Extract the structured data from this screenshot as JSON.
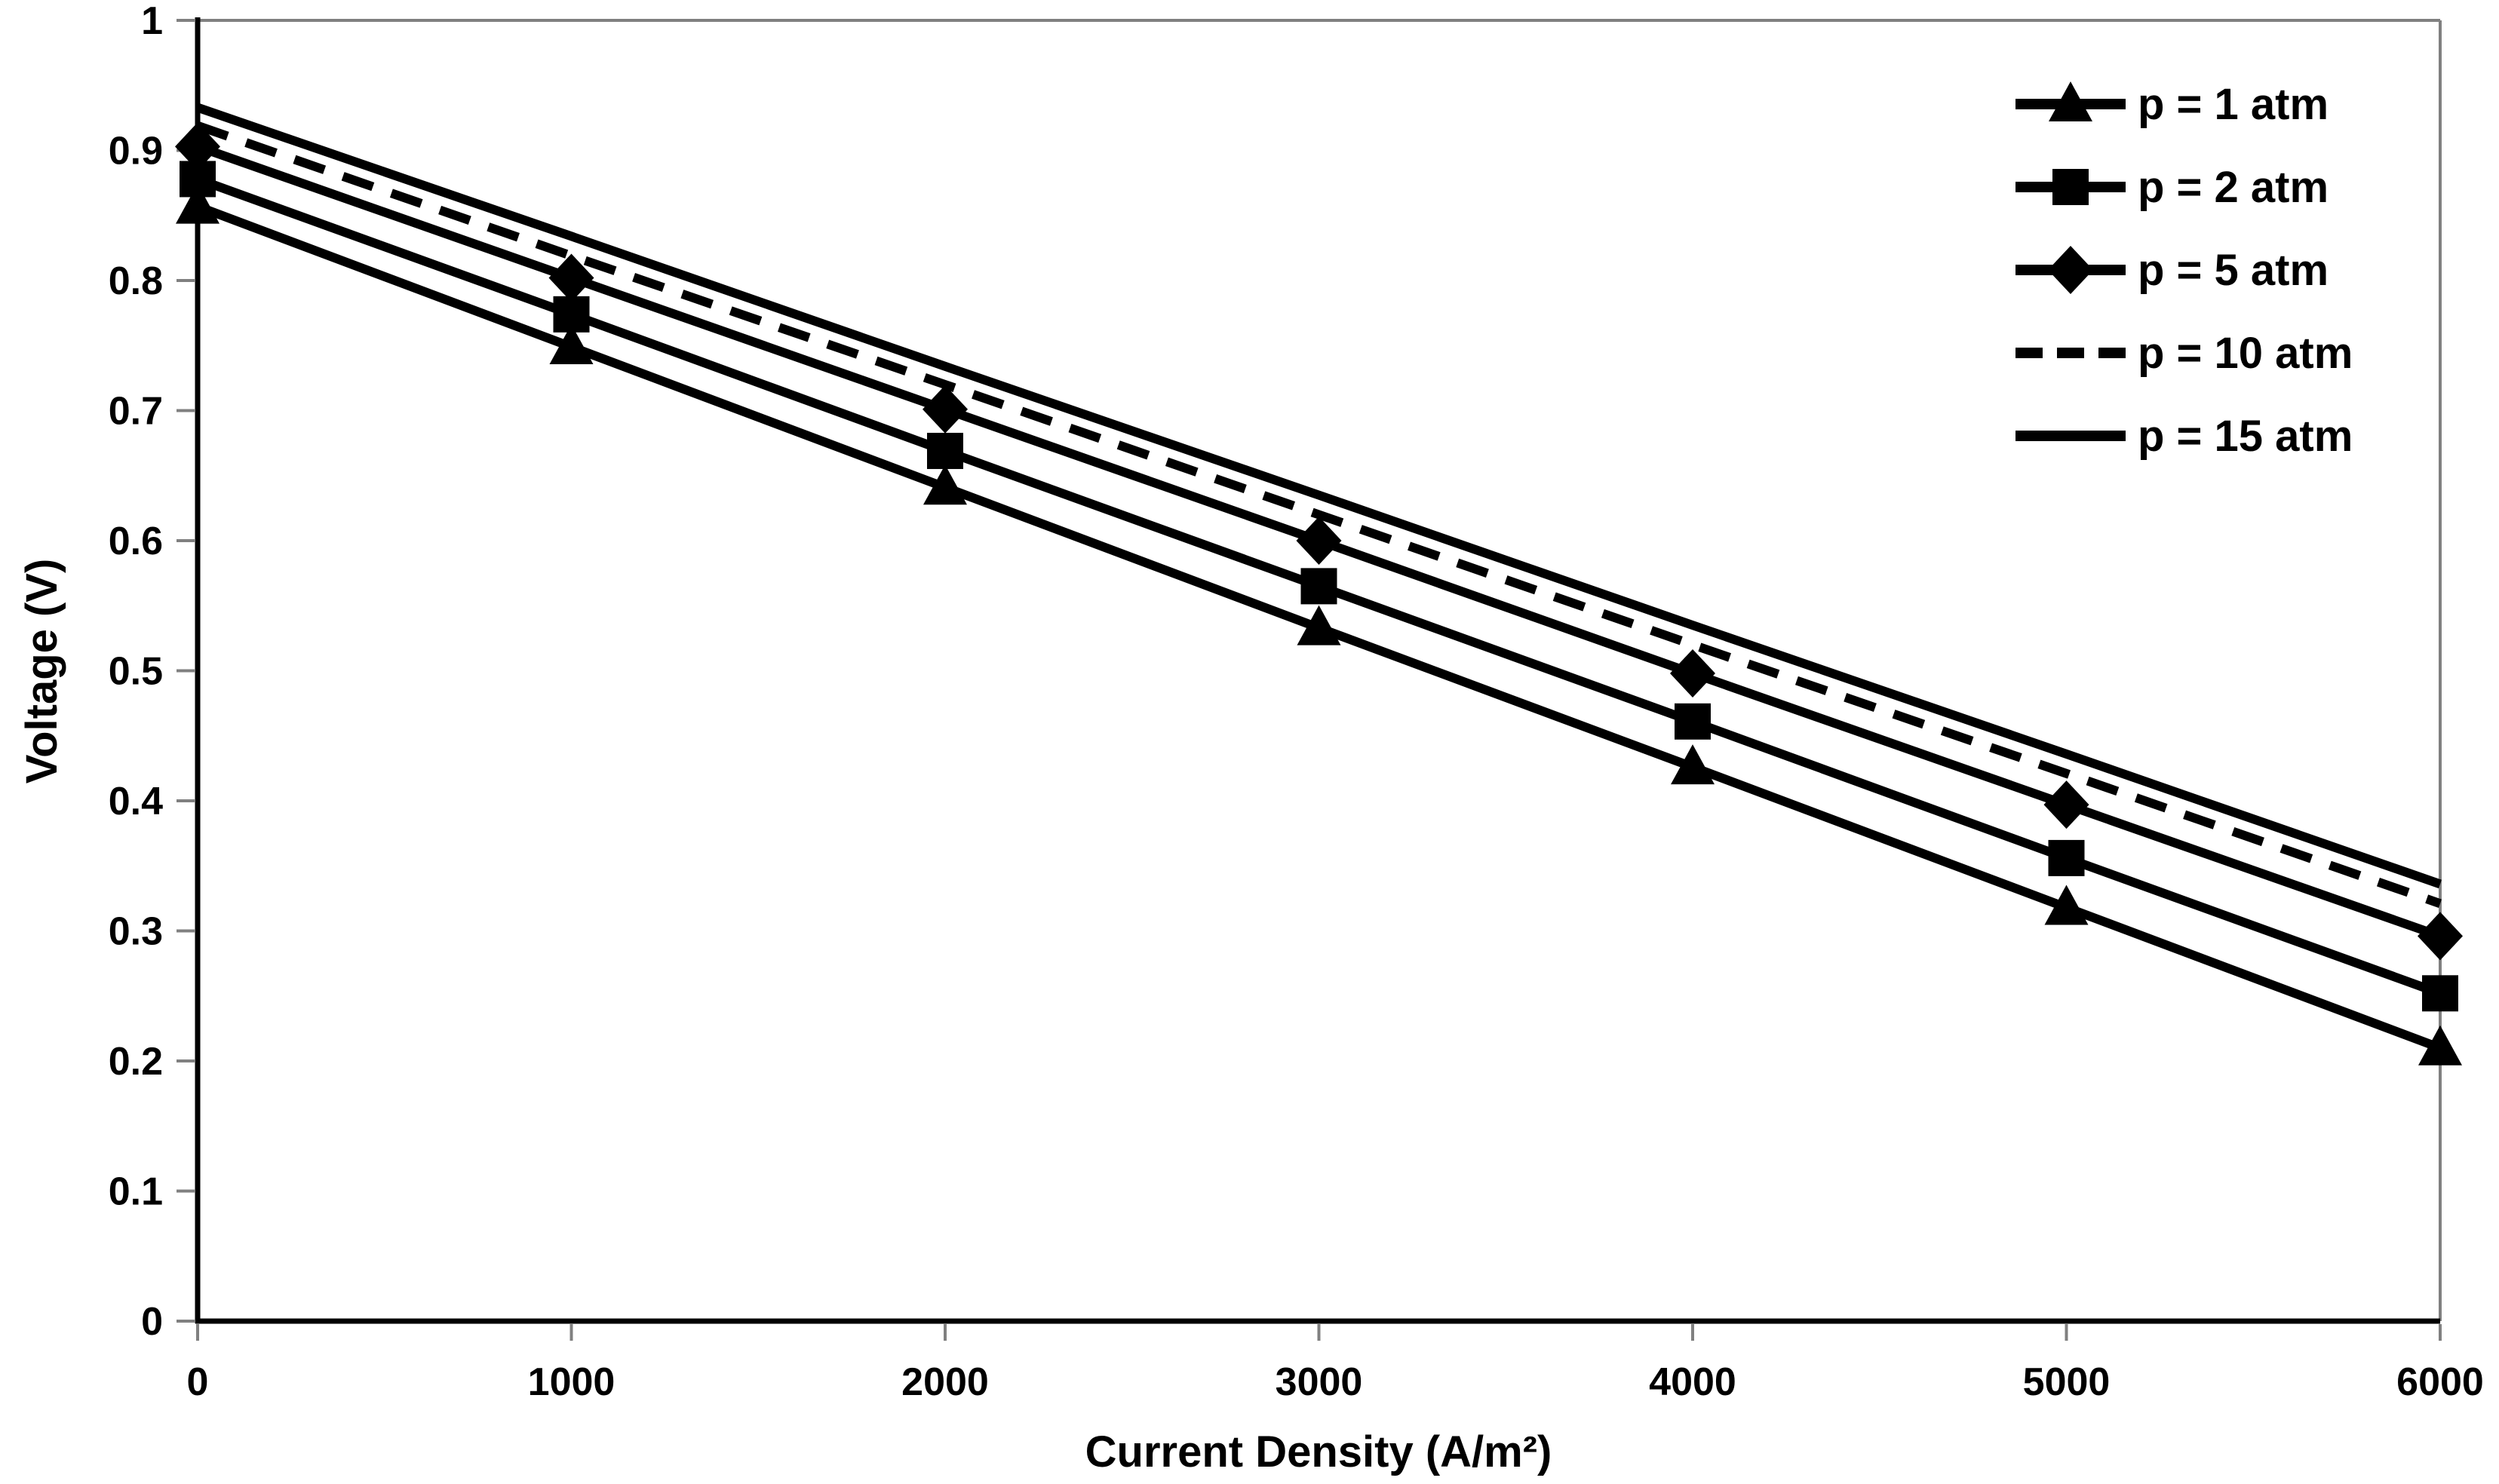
{
  "chart_data": {
    "type": "line",
    "title": "",
    "xlabel": "Current Density (A/m²)",
    "ylabel": "Voltage (V)",
    "xlim": [
      0,
      6000
    ],
    "ylim": [
      0,
      1
    ],
    "grid": false,
    "legend_position": "top-right",
    "x": [
      0,
      1000,
      2000,
      3000,
      4000,
      5000,
      6000
    ],
    "x_tick_labels": [
      "0",
      "1000",
      "2000",
      "3000",
      "4000",
      "5000",
      "6000"
    ],
    "y_ticks": [
      0,
      0.1,
      0.2,
      0.3,
      0.4,
      0.5,
      0.6,
      0.7,
      0.8,
      0.9,
      1
    ],
    "y_tick_labels": [
      "0",
      "0.1",
      "0.2",
      "0.3",
      "0.4",
      "0.5",
      "0.6",
      "0.7",
      "0.8",
      "0.9",
      "1"
    ],
    "series": [
      {
        "name": "p = 1 atm",
        "marker": "triangle",
        "line_style": "solid",
        "values": [
          0.857,
          0.749,
          0.641,
          0.533,
          0.426,
          0.318,
          0.21
        ]
      },
      {
        "name": "p = 2 atm",
        "marker": "square",
        "line_style": "solid",
        "values": [
          0.878,
          0.774,
          0.669,
          0.565,
          0.461,
          0.356,
          0.252
        ]
      },
      {
        "name": "p = 5 atm",
        "marker": "diamond",
        "line_style": "solid",
        "values": [
          0.903,
          0.802,
          0.701,
          0.6,
          0.498,
          0.397,
          0.296
        ]
      },
      {
        "name": "p = 10 atm",
        "marker": "none",
        "line_style": "dashed",
        "values": [
          0.919,
          0.819,
          0.72,
          0.62,
          0.52,
          0.421,
          0.321
        ]
      },
      {
        "name": "p = 15 atm",
        "marker": "none",
        "line_style": "solid",
        "values": [
          0.933,
          0.834,
          0.734,
          0.635,
          0.535,
          0.436,
          0.336
        ]
      }
    ],
    "colors": {
      "series": "#000000",
      "axis": "#000000",
      "tick": "#808080",
      "border": "#808080",
      "text": "#000000",
      "background": "#ffffff"
    }
  }
}
